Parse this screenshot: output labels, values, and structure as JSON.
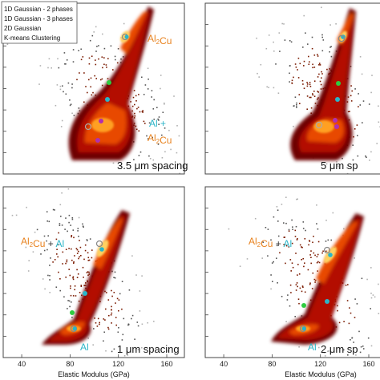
{
  "chart_data": {
    "type": "scatter",
    "kind": "2D histogram density panels (2x2 grid)",
    "xlabel": "Elastic Modulus (GPa)",
    "x_ticks": [
      40,
      80,
      120,
      160
    ],
    "xlim": [
      30,
      160
    ],
    "legend": {
      "placement": "top-left",
      "entries": [
        "1D Gaussian - 2 phases",
        "1D Gaussian - 3 phases",
        "2D Gaussian",
        "K-means Clustering"
      ]
    },
    "panels": [
      {
        "label": "3.5 μm spacing",
        "annotations": [
          {
            "parts": [
              {
                "text": "Al",
                "color": "#e8821e"
              },
              {
                "text": "2",
                "color": "#e8821e",
                "sub": true
              },
              {
                "text": "Cu",
                "color": "#e8821e"
              }
            ]
          },
          {
            "parts": [
              {
                "text": "Al +",
                "color": "#2bb5c8"
              }
            ]
          },
          {
            "parts": [
              {
                "text": "Al",
                "color": "#e8821e"
              },
              {
                "text": "2",
                "color": "#e8821e",
                "sub": true
              },
              {
                "text": "Cu",
                "color": "#e8821e"
              }
            ]
          }
        ]
      },
      {
        "label": "5 μm sp",
        "annotations": []
      },
      {
        "label": "1 μm spacing",
        "annotations": [
          {
            "parts": [
              {
                "text": "Al",
                "color": "#e8821e"
              },
              {
                "text": "2",
                "color": "#e8821e",
                "sub": true
              },
              {
                "text": "Cu",
                "color": "#e8821e"
              },
              {
                "text": " + ",
                "color": "#333333"
              },
              {
                "text": "Al",
                "color": "#2bb5c8"
              }
            ]
          },
          {
            "parts": [
              {
                "text": "Al",
                "color": "#2bb5c8"
              }
            ]
          }
        ]
      },
      {
        "label": "2 μm sp",
        "annotations": [
          {
            "parts": [
              {
                "text": "Al",
                "color": "#e8821e"
              },
              {
                "text": "2",
                "color": "#e8821e",
                "sub": true
              },
              {
                "text": "Cu",
                "color": "#e8821e"
              },
              {
                "text": " + ",
                "color": "#333333"
              },
              {
                "text": "Al",
                "color": "#2bb5c8"
              }
            ]
          },
          {
            "parts": [
              {
                "text": "Al",
                "color": "#2bb5c8"
              }
            ]
          }
        ]
      }
    ],
    "colors": {
      "phase_al2cu": "#e8821e",
      "phase_al": "#2bb5c8",
      "density_low": "#5a0000",
      "density_high": "#fff4a0",
      "marker_1d_2phase": "#7a7a7a",
      "marker_1d_3phase": "#2bb5c8",
      "marker_2d": "#2ecc40",
      "marker_kmeans": "#b030b0"
    }
  }
}
